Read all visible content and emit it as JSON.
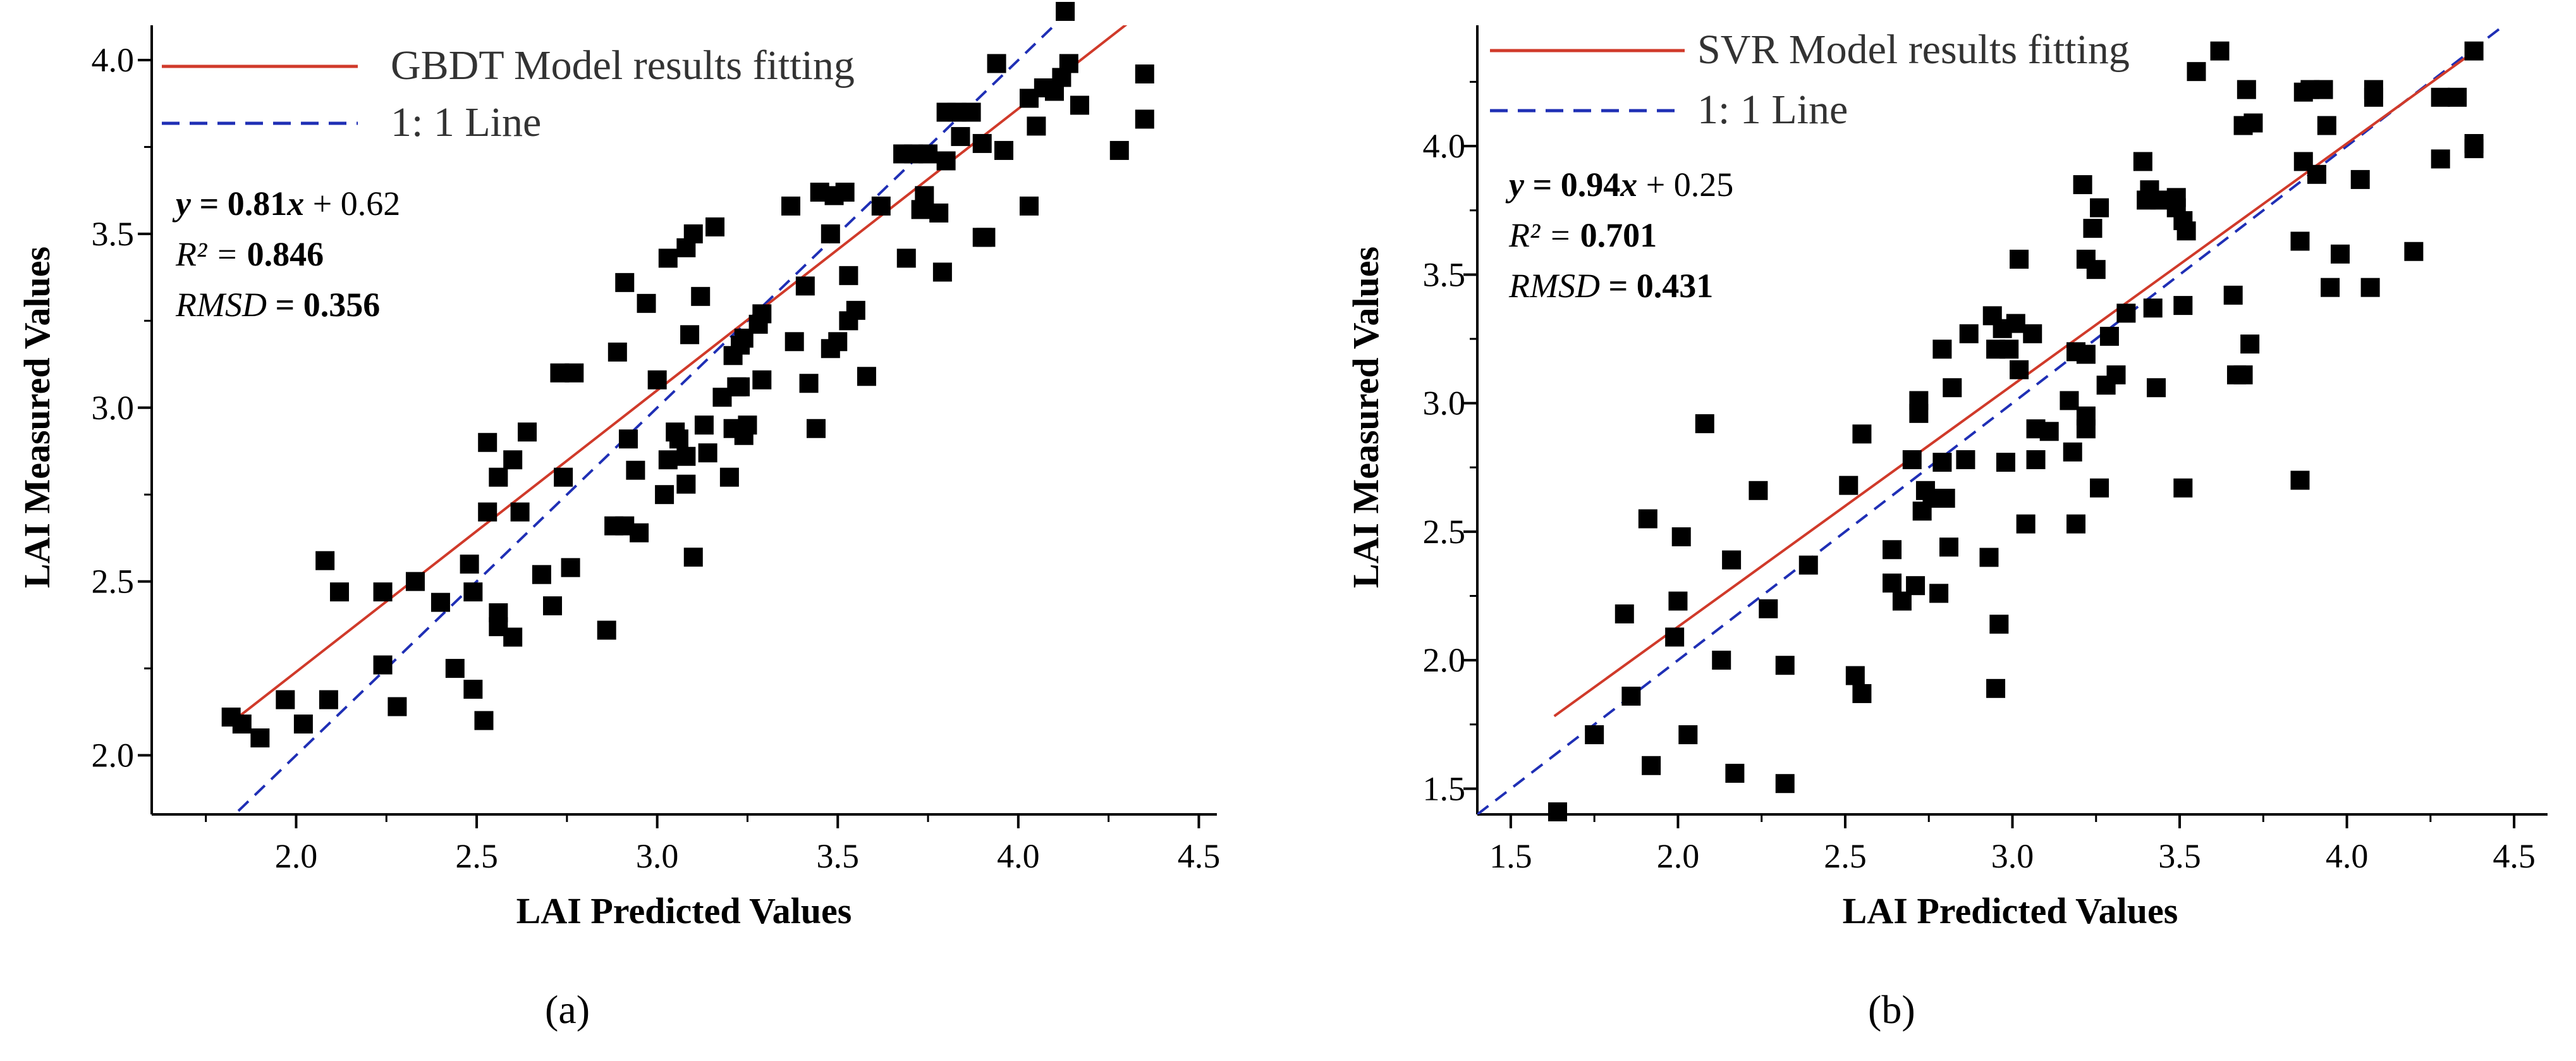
{
  "chart_data": [
    {
      "panel": "(a)",
      "type": "scatter",
      "xlabel": "LAI Predicted Values",
      "ylabel": "LAI Measured Values",
      "xlim": [
        1.6,
        4.55
      ],
      "ylim": [
        1.83,
        4.1
      ],
      "xticks": [
        "2.0",
        "2.5",
        "3.0",
        "3.5",
        "4.0",
        "4.5"
      ],
      "yticks": [
        "2.0",
        "2.5",
        "3.0",
        "3.5",
        "4.0"
      ],
      "legend": [
        {
          "label": "GBDT Model results fitting",
          "style": "solid",
          "color": "#d03a2a"
        },
        {
          "label": "1: 1 Line",
          "style": "dashed",
          "color": "#1f2fb5"
        }
      ],
      "legend_position": "top-left",
      "stats": {
        "eq_y": "y",
        "eq_rest": " = 0.81",
        "eq_x": "x",
        "eq_tail": " + 0.62",
        "r2_lhs": "R² = ",
        "r2_val": "0.846",
        "rmsd_lhs": "RMSD",
        "rmsd_rhs": " = 0.356"
      },
      "fit_line": {
        "slope": 0.81,
        "intercept": 0.62,
        "x_range": [
          1.84,
          4.35
        ]
      },
      "one_to_one_range": [
        1.84,
        4.2
      ],
      "points": [
        [
          1.82,
          2.11
        ],
        [
          1.85,
          2.09
        ],
        [
          1.9,
          2.05
        ],
        [
          1.97,
          2.16
        ],
        [
          2.02,
          2.09
        ],
        [
          2.08,
          2.56
        ],
        [
          2.09,
          2.16
        ],
        [
          2.12,
          2.47
        ],
        [
          2.24,
          2.47
        ],
        [
          2.24,
          2.26
        ],
        [
          2.28,
          2.14
        ],
        [
          2.33,
          2.5
        ],
        [
          2.4,
          2.44
        ],
        [
          2.44,
          2.25
        ],
        [
          2.48,
          2.55
        ],
        [
          2.49,
          2.19
        ],
        [
          2.49,
          2.47
        ],
        [
          2.52,
          2.1
        ],
        [
          2.53,
          2.9
        ],
        [
          2.53,
          2.7
        ],
        [
          2.56,
          2.41
        ],
        [
          2.56,
          2.37
        ],
        [
          2.56,
          2.8
        ],
        [
          2.6,
          2.85
        ],
        [
          2.6,
          2.34
        ],
        [
          2.62,
          2.7
        ],
        [
          2.64,
          2.93
        ],
        [
          2.68,
          2.52
        ],
        [
          2.71,
          2.43
        ],
        [
          2.73,
          3.1
        ],
        [
          2.74,
          2.8
        ],
        [
          2.76,
          2.54
        ],
        [
          2.77,
          3.1
        ],
        [
          2.86,
          2.36
        ],
        [
          2.88,
          2.66
        ],
        [
          2.89,
          3.16
        ],
        [
          2.91,
          2.66
        ],
        [
          2.91,
          3.36
        ],
        [
          2.92,
          2.91
        ],
        [
          2.94,
          2.82
        ],
        [
          2.95,
          2.64
        ],
        [
          2.97,
          3.3
        ],
        [
          3.0,
          3.08
        ],
        [
          3.02,
          2.75
        ],
        [
          3.03,
          3.43
        ],
        [
          3.03,
          2.85
        ],
        [
          3.05,
          2.93
        ],
        [
          3.06,
          2.91
        ],
        [
          3.08,
          2.78
        ],
        [
          3.08,
          2.86
        ],
        [
          3.08,
          3.46
        ],
        [
          3.09,
          3.21
        ],
        [
          3.1,
          3.5
        ],
        [
          3.1,
          2.57
        ],
        [
          3.12,
          3.32
        ],
        [
          3.13,
          2.95
        ],
        [
          3.14,
          2.87
        ],
        [
          3.16,
          3.52
        ],
        [
          3.18,
          3.03
        ],
        [
          3.2,
          2.8
        ],
        [
          3.21,
          3.15
        ],
        [
          3.21,
          2.94
        ],
        [
          3.22,
          3.06
        ],
        [
          3.23,
          3.18
        ],
        [
          3.23,
          3.06
        ],
        [
          3.24,
          2.92
        ],
        [
          3.24,
          3.2
        ],
        [
          3.25,
          2.95
        ],
        [
          3.28,
          3.24
        ],
        [
          3.29,
          3.08
        ],
        [
          3.29,
          3.27
        ],
        [
          3.37,
          3.58
        ],
        [
          3.38,
          3.19
        ],
        [
          3.41,
          3.35
        ],
        [
          3.42,
          3.07
        ],
        [
          3.44,
          2.94
        ],
        [
          3.45,
          3.62
        ],
        [
          3.48,
          3.5
        ],
        [
          3.48,
          3.17
        ],
        [
          3.49,
          3.61
        ],
        [
          3.5,
          3.19
        ],
        [
          3.52,
          3.62
        ],
        [
          3.53,
          3.25
        ],
        [
          3.53,
          3.38
        ],
        [
          3.55,
          3.28
        ],
        [
          3.58,
          3.09
        ],
        [
          3.62,
          3.58
        ],
        [
          3.68,
          3.73
        ],
        [
          3.69,
          3.43
        ],
        [
          3.71,
          3.73
        ],
        [
          3.73,
          3.57
        ],
        [
          3.74,
          3.61
        ],
        [
          3.75,
          3.73
        ],
        [
          3.78,
          3.56
        ],
        [
          3.79,
          3.39
        ],
        [
          3.8,
          3.85
        ],
        [
          3.8,
          3.71
        ],
        [
          3.83,
          3.85
        ],
        [
          3.84,
          3.78
        ],
        [
          3.87,
          3.85
        ],
        [
          3.9,
          3.49
        ],
        [
          3.9,
          3.76
        ],
        [
          3.91,
          3.49
        ],
        [
          3.94,
          3.99
        ],
        [
          3.96,
          3.74
        ],
        [
          4.03,
          3.58
        ],
        [
          4.03,
          3.89
        ],
        [
          4.05,
          3.81
        ],
        [
          4.07,
          3.92
        ],
        [
          4.1,
          3.91
        ],
        [
          4.12,
          3.95
        ],
        [
          4.13,
          4.14
        ],
        [
          4.14,
          3.99
        ],
        [
          4.17,
          3.87
        ],
        [
          4.28,
          3.74
        ],
        [
          4.35,
          3.96
        ],
        [
          4.35,
          3.83
        ]
      ]
    },
    {
      "panel": "(b)",
      "type": "scatter",
      "xlabel": "LAI Predicted Values",
      "ylabel": "LAI Measured Values",
      "xlim": [
        1.4,
        4.6
      ],
      "ylim": [
        1.4,
        4.47
      ],
      "xticks": [
        "1.5",
        "2.0",
        "2.5",
        "3.0",
        "3.5",
        "4.0",
        "4.5"
      ],
      "yticks": [
        "1.5",
        "2.0",
        "2.5",
        "3.0",
        "3.5",
        "4.0"
      ],
      "legend": [
        {
          "label": "SVR Model results fitting",
          "style": "solid",
          "color": "#d03a2a"
        },
        {
          "label": "1: 1 Line",
          "style": "dashed",
          "color": "#1f2fb5"
        }
      ],
      "legend_position": "top-left",
      "stats": {
        "eq_y": "y",
        "eq_rest": " = 0.94",
        "eq_x": "x",
        "eq_tail": " + 0.25",
        "r2_lhs": "R² = ",
        "r2_val": "0.701",
        "rmsd_lhs": "RMSD",
        "rmsd_rhs": " = 0.431"
      },
      "fit_line": {
        "slope": 0.94,
        "intercept": 0.25,
        "x_range": [
          1.63,
          4.38
        ]
      },
      "one_to_one_range": [
        1.4,
        4.47
      ],
      "points": [
        [
          1.64,
          1.41
        ],
        [
          1.75,
          1.71
        ],
        [
          1.84,
          2.18
        ],
        [
          1.86,
          1.86
        ],
        [
          1.91,
          2.55
        ],
        [
          1.92,
          1.59
        ],
        [
          1.99,
          2.09
        ],
        [
          2.0,
          2.23
        ],
        [
          2.01,
          2.48
        ],
        [
          2.03,
          1.71
        ],
        [
          2.08,
          2.92
        ],
        [
          2.13,
          2.0
        ],
        [
          2.16,
          2.39
        ],
        [
          2.17,
          1.56
        ],
        [
          2.24,
          2.66
        ],
        [
          2.27,
          2.2
        ],
        [
          2.32,
          1.52
        ],
        [
          2.32,
          1.98
        ],
        [
          2.39,
          2.37
        ],
        [
          2.51,
          2.68
        ],
        [
          2.53,
          1.94
        ],
        [
          2.55,
          2.88
        ],
        [
          2.55,
          1.87
        ],
        [
          2.64,
          2.43
        ],
        [
          2.64,
          2.3
        ],
        [
          2.67,
          2.23
        ],
        [
          2.7,
          2.78
        ],
        [
          2.71,
          2.29
        ],
        [
          2.72,
          3.01
        ],
        [
          2.72,
          2.96
        ],
        [
          2.73,
          2.58
        ],
        [
          2.74,
          2.66
        ],
        [
          2.76,
          2.63
        ],
        [
          2.78,
          2.26
        ],
        [
          2.79,
          3.21
        ],
        [
          2.79,
          2.77
        ],
        [
          2.8,
          2.63
        ],
        [
          2.81,
          2.44
        ],
        [
          2.82,
          3.06
        ],
        [
          2.86,
          2.78
        ],
        [
          2.87,
          3.27
        ],
        [
          2.93,
          2.4
        ],
        [
          2.94,
          3.34
        ],
        [
          2.95,
          3.21
        ],
        [
          2.95,
          1.89
        ],
        [
          2.96,
          2.14
        ],
        [
          2.97,
          3.29
        ],
        [
          2.98,
          2.77
        ],
        [
          2.99,
          3.21
        ],
        [
          3.01,
          3.31
        ],
        [
          3.02,
          3.56
        ],
        [
          3.02,
          3.13
        ],
        [
          3.04,
          2.53
        ],
        [
          3.06,
          3.27
        ],
        [
          3.07,
          2.78
        ],
        [
          3.07,
          2.9
        ],
        [
          3.11,
          2.89
        ],
        [
          3.17,
          3.01
        ],
        [
          3.18,
          2.81
        ],
        [
          3.19,
          3.2
        ],
        [
          3.19,
          2.53
        ],
        [
          3.21,
          3.85
        ],
        [
          3.22,
          2.95
        ],
        [
          3.22,
          2.9
        ],
        [
          3.22,
          3.56
        ],
        [
          3.22,
          3.19
        ],
        [
          3.24,
          3.68
        ],
        [
          3.25,
          3.52
        ],
        [
          3.26,
          3.76
        ],
        [
          3.26,
          2.67
        ],
        [
          3.28,
          3.07
        ],
        [
          3.29,
          3.26
        ],
        [
          3.31,
          3.11
        ],
        [
          3.34,
          3.35
        ],
        [
          3.39,
          3.94
        ],
        [
          3.4,
          3.79
        ],
        [
          3.41,
          3.83
        ],
        [
          3.42,
          3.37
        ],
        [
          3.43,
          3.06
        ],
        [
          3.44,
          3.79
        ],
        [
          3.49,
          3.76
        ],
        [
          3.49,
          3.8
        ],
        [
          3.51,
          3.38
        ],
        [
          3.51,
          3.71
        ],
        [
          3.51,
          2.67
        ],
        [
          3.52,
          3.67
        ],
        [
          3.55,
          4.29
        ],
        [
          3.62,
          4.37
        ],
        [
          3.66,
          3.42
        ],
        [
          3.67,
          3.11
        ],
        [
          3.69,
          3.11
        ],
        [
          3.69,
          4.08
        ],
        [
          3.7,
          4.22
        ],
        [
          3.71,
          3.23
        ],
        [
          3.72,
          4.09
        ],
        [
          3.86,
          2.7
        ],
        [
          3.86,
          3.63
        ],
        [
          3.87,
          3.94
        ],
        [
          3.87,
          4.21
        ],
        [
          3.89,
          4.22
        ],
        [
          3.91,
          3.89
        ],
        [
          3.93,
          4.22
        ],
        [
          3.94,
          4.08
        ],
        [
          3.95,
          3.45
        ],
        [
          3.98,
          3.58
        ],
        [
          4.04,
          3.87
        ],
        [
          4.07,
          3.45
        ],
        [
          4.08,
          4.19
        ],
        [
          4.08,
          4.22
        ],
        [
          4.2,
          3.59
        ],
        [
          4.28,
          4.19
        ],
        [
          4.28,
          3.95
        ],
        [
          4.33,
          4.19
        ],
        [
          4.38,
          4.37
        ],
        [
          4.38,
          3.99
        ],
        [
          4.38,
          4.01
        ]
      ]
    }
  ]
}
